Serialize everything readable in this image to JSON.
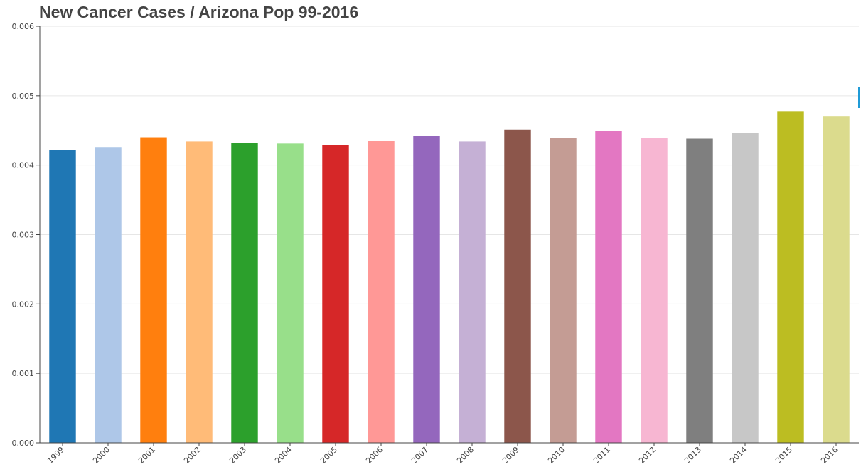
{
  "chart_data": {
    "type": "bar",
    "title": "New Cancer Cases / Arizona Pop 99-2016",
    "xlabel": "",
    "ylabel": "",
    "ylim": [
      0,
      0.006
    ],
    "yticks": [
      "0.000",
      "0.001",
      "0.002",
      "0.003",
      "0.004",
      "0.005",
      "0.006"
    ],
    "grid": true,
    "legend": "none",
    "categories": [
      "1999",
      "2000",
      "2001",
      "2002",
      "2003",
      "2004",
      "2005",
      "2006",
      "2007",
      "2008",
      "2009",
      "2010",
      "2011",
      "2012",
      "2013",
      "2014",
      "2015",
      "2016"
    ],
    "values": [
      0.00422,
      0.00426,
      0.0044,
      0.00434,
      0.00432,
      0.00431,
      0.00429,
      0.00435,
      0.00442,
      0.00434,
      0.00451,
      0.00439,
      0.00449,
      0.00439,
      0.00438,
      0.00446,
      0.00477,
      0.0047
    ],
    "colors": [
      "#1f77b4",
      "#aec7e8",
      "#ff7f0e",
      "#ffbb78",
      "#2ca02c",
      "#98df8a",
      "#d62728",
      "#ff9896",
      "#9467bd",
      "#c5b0d5",
      "#8c564b",
      "#c49c94",
      "#e377c2",
      "#f7b6d2",
      "#7f7f7f",
      "#c7c7c7",
      "#bcbd22",
      "#dbdb8d"
    ]
  }
}
